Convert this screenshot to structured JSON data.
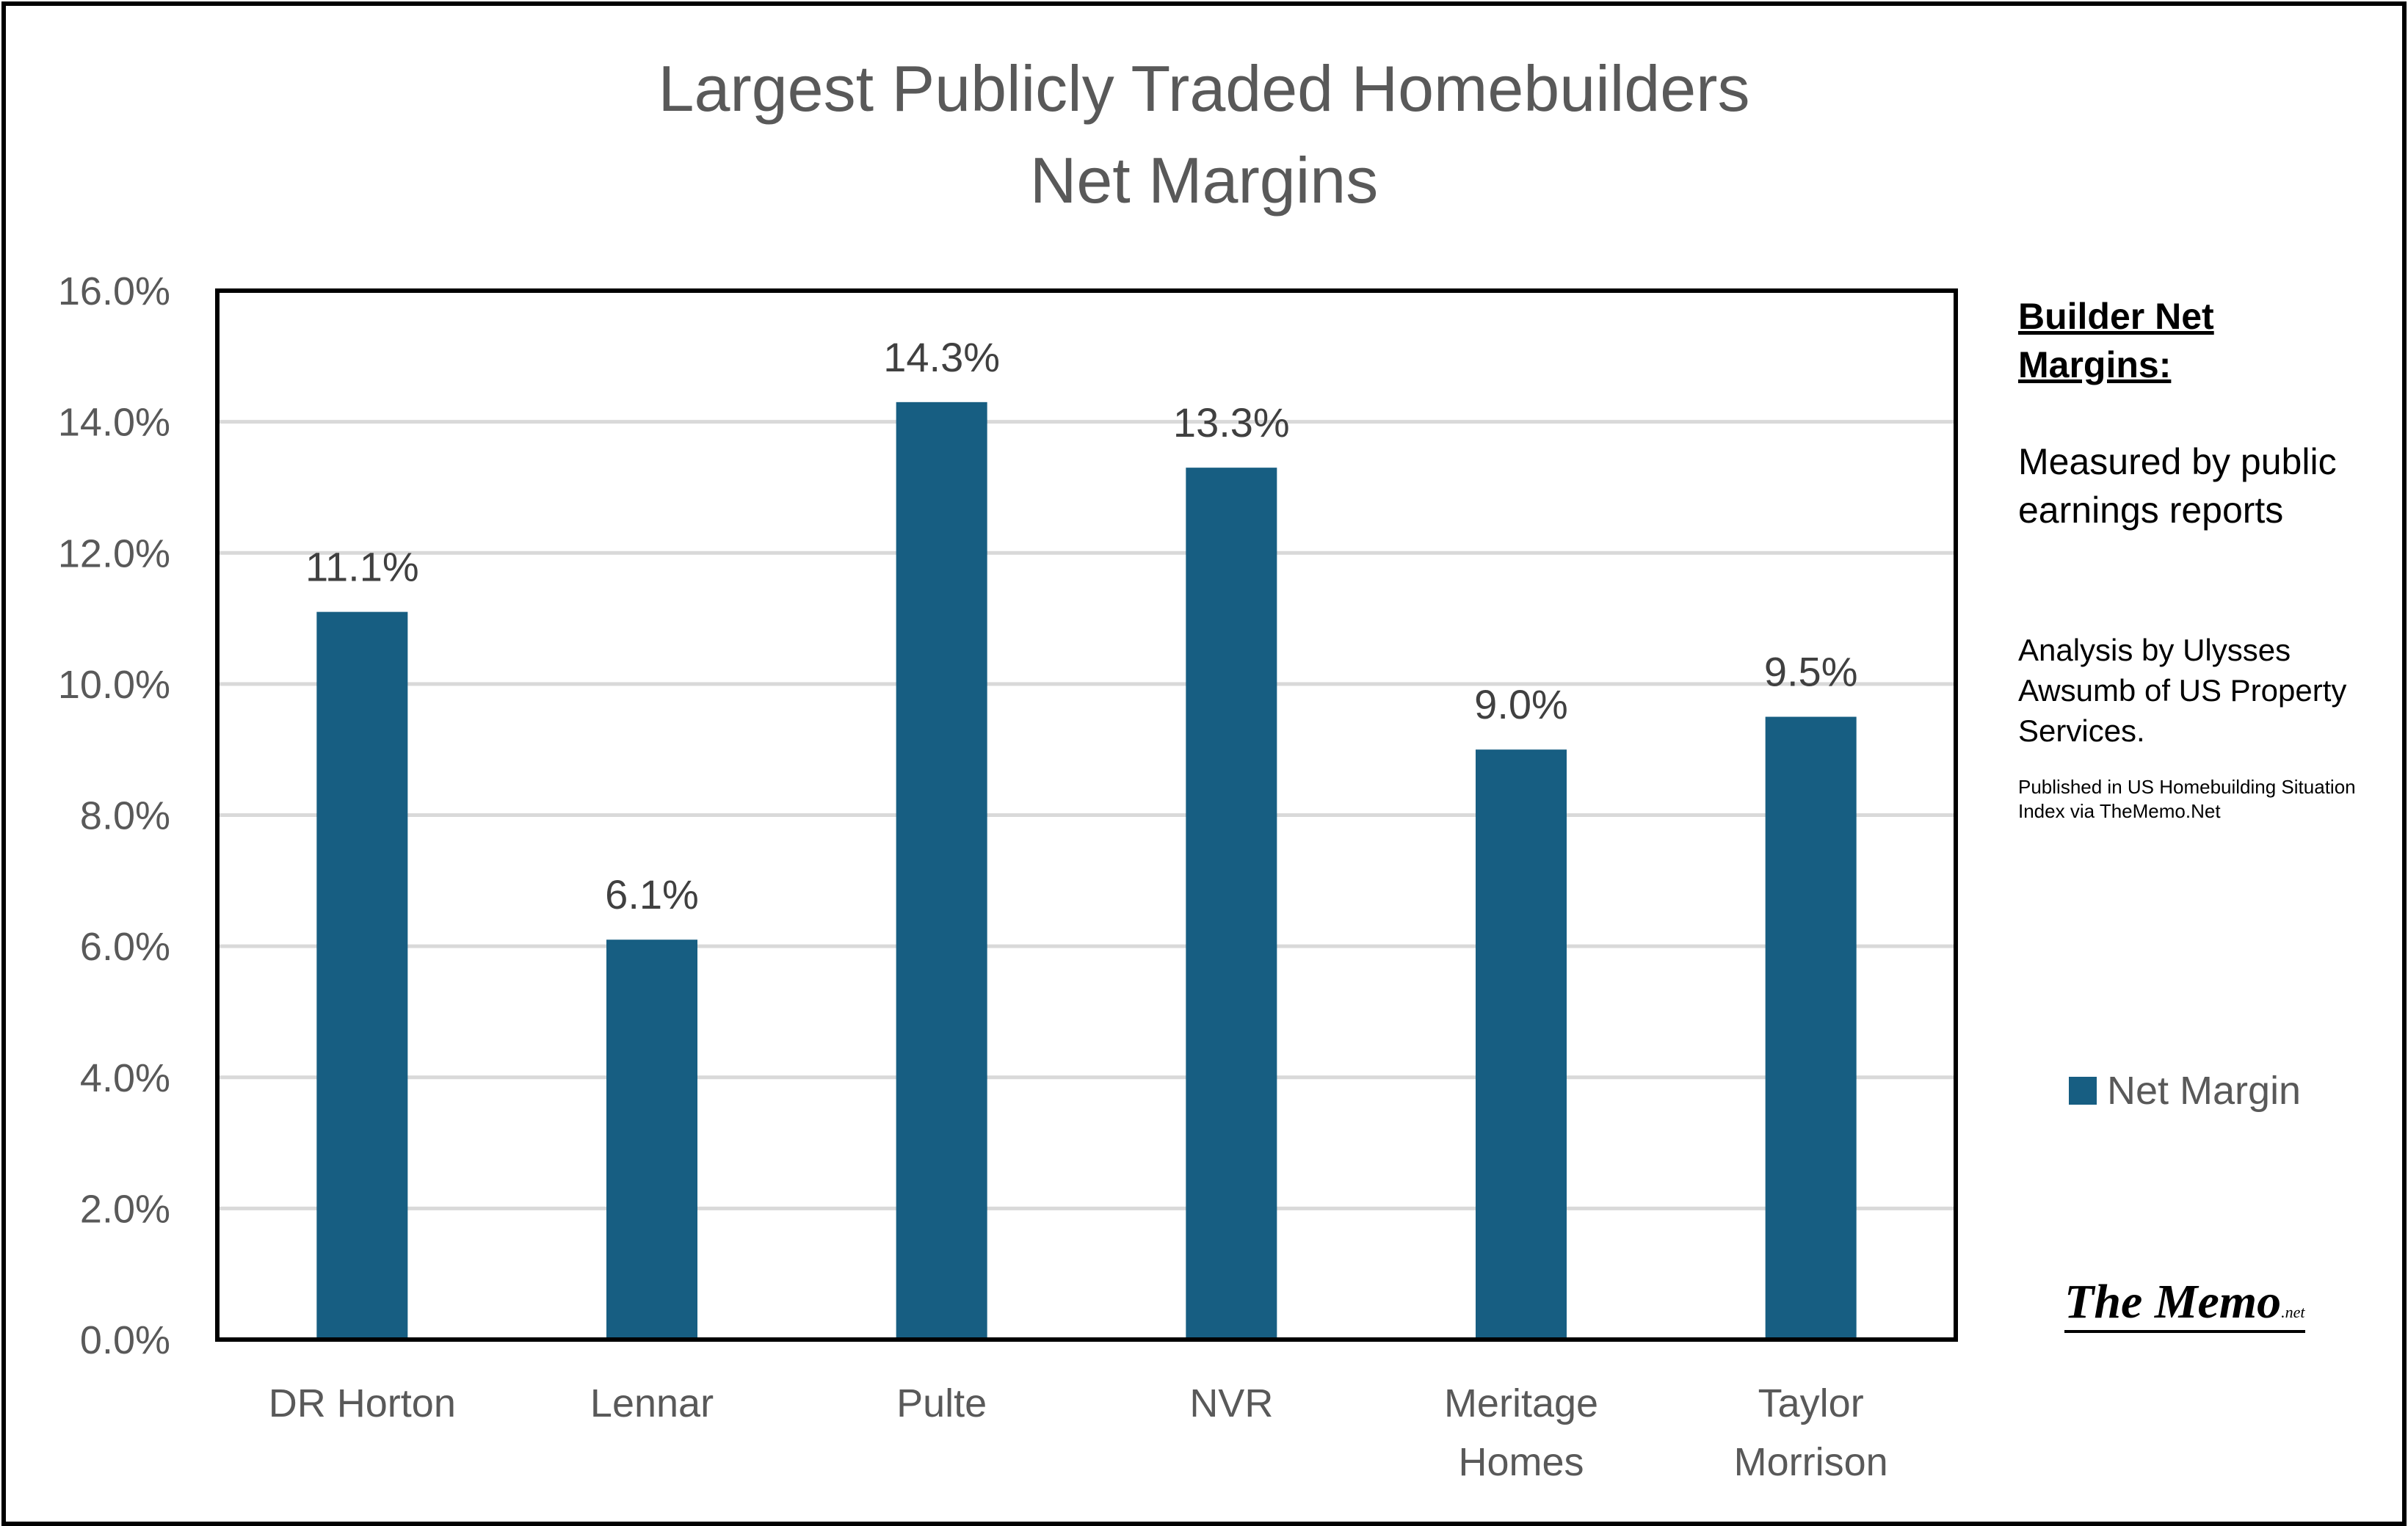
{
  "chart_data": {
    "type": "bar",
    "title": [
      "Largest Publicly Traded Homebuilders",
      "Net Margins"
    ],
    "categories": [
      [
        "DR Horton"
      ],
      [
        "Lennar"
      ],
      [
        "Pulte"
      ],
      [
        "NVR"
      ],
      [
        "Meritage",
        "Homes"
      ],
      [
        "Taylor",
        "Morrison"
      ]
    ],
    "series": [
      {
        "name": "Net Margin",
        "color": "#175E82",
        "values": [
          11.1,
          6.1,
          14.3,
          13.3,
          9.0,
          9.5
        ],
        "data_labels": [
          "11.1%",
          "6.1%",
          "14.3%",
          "13.3%",
          "9.0%",
          "9.5%"
        ]
      }
    ],
    "ylim": [
      0,
      16
    ],
    "yticks": [
      "0.0%",
      "2.0%",
      "4.0%",
      "6.0%",
      "8.0%",
      "10.0%",
      "12.0%",
      "14.0%",
      "16.0%"
    ],
    "grid": true,
    "legend_position": "right"
  },
  "sidebar": {
    "heading": "Builder Net Margins:",
    "measured": "Measured by public earnings reports",
    "analysis": "Analysis by Ulysses Awsumb of US Property Services.",
    "published": "Published in US Homebuilding Situation Index via TheMemo.Net"
  },
  "logo": {
    "main": "The Memo",
    "suffix": ".net"
  }
}
